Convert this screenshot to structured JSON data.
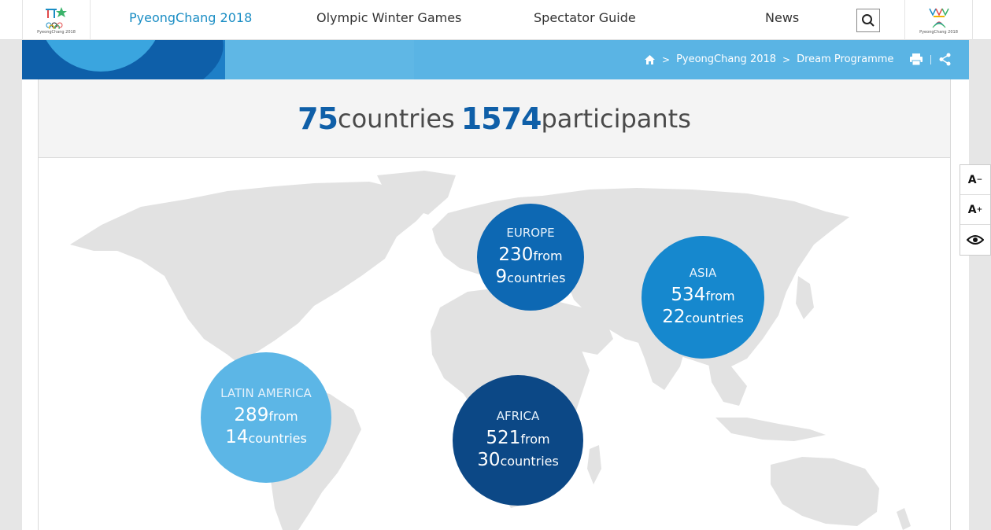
{
  "header": {
    "logo_left_caption": "PyeongChang 2018",
    "logo_right_caption": "PyeongChang 2018",
    "nav": [
      {
        "label": "PyeongChang 2018"
      },
      {
        "label": "Olympic Winter Games"
      },
      {
        "label": "Spectator Guide"
      },
      {
        "label": "News"
      }
    ],
    "search_icon": "search-icon"
  },
  "breadcrumb": {
    "home_icon": "home-icon",
    "items": [
      "PyeongChang 2018",
      "Dream Programme"
    ],
    "separator": ">",
    "tools": [
      "print-icon",
      "share-icon"
    ]
  },
  "stats": {
    "countries_value": "75",
    "countries_label": "countries",
    "participants_value": "1574",
    "participants_label": "participants"
  },
  "regions": [
    {
      "name": "EUROPE",
      "participants": "230",
      "from_label": "from",
      "countries": "9",
      "countries_label": "countries",
      "color": "#0d68b3"
    },
    {
      "name": "ASIA",
      "participants": "534",
      "from_label": "from",
      "countries": "22",
      "countries_label": "countries",
      "color": "#1688ce"
    },
    {
      "name": "LATIN AMERICA",
      "participants": "289",
      "from_label": "from",
      "countries": "14",
      "countries_label": "countries",
      "color": "#5cb6e6"
    },
    {
      "name": "AFRICA",
      "participants": "521",
      "from_label": "from",
      "countries": "30",
      "countries_label": "countries",
      "color": "#0c4886"
    }
  ],
  "accessibility": {
    "decrease_label": "A",
    "decrease_sign": "−",
    "increase_label": "A",
    "increase_sign": "+",
    "contrast_icon": "eye-icon"
  },
  "colors": {
    "accent": "#1a8dc4",
    "banner": "#5ab4e4",
    "stat_number": "#0f5fa8",
    "map_land": "#e2e2e2"
  }
}
